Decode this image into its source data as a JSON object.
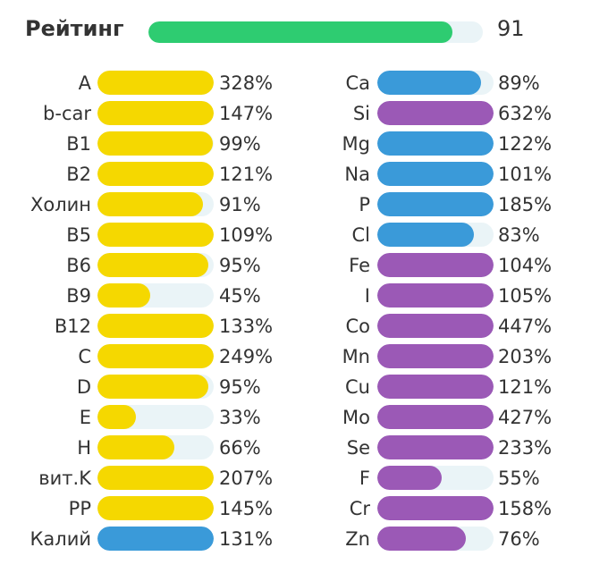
{
  "colors": {
    "vitamin": "#f5d800",
    "mineral_blue": "#3a9ad9",
    "mineral_purple": "#9b59b6",
    "rating": "#2ecc71",
    "track": "#eaf4f7"
  },
  "rating": {
    "label": "Рейтинг",
    "value": "91",
    "fraction": 0.91
  },
  "chart_data": {
    "type": "bar",
    "orientation": "horizontal",
    "max_percent": 100,
    "series": [
      {
        "items": [
          {
            "label": "A",
            "text": "328%",
            "value": 328,
            "color": "vitamin"
          },
          {
            "label": "b-car",
            "text": "147%",
            "value": 147,
            "color": "vitamin"
          },
          {
            "label": "B1",
            "text": "99%",
            "value": 99,
            "color": "vitamin"
          },
          {
            "label": "B2",
            "text": "121%",
            "value": 121,
            "color": "vitamin"
          },
          {
            "label": "Холин",
            "text": "91%",
            "value": 91,
            "color": "vitamin"
          },
          {
            "label": "B5",
            "text": "109%",
            "value": 109,
            "color": "vitamin"
          },
          {
            "label": "B6",
            "text": "95%",
            "value": 95,
            "color": "vitamin"
          },
          {
            "label": "B9",
            "text": "45%",
            "value": 45,
            "color": "vitamin"
          },
          {
            "label": "B12",
            "text": "133%",
            "value": 133,
            "color": "vitamin"
          },
          {
            "label": "C",
            "text": "249%",
            "value": 249,
            "color": "vitamin"
          },
          {
            "label": "D",
            "text": "95%",
            "value": 95,
            "color": "vitamin"
          },
          {
            "label": "E",
            "text": "33%",
            "value": 33,
            "color": "vitamin"
          },
          {
            "label": "H",
            "text": "66%",
            "value": 66,
            "color": "vitamin"
          },
          {
            "label": "вит.K",
            "text": "207%",
            "value": 207,
            "color": "vitamin"
          },
          {
            "label": "PP",
            "text": "145%",
            "value": 145,
            "color": "vitamin"
          },
          {
            "label": "Калий",
            "text": "131%",
            "value": 131,
            "color": "mineral_blue"
          }
        ]
      },
      {
        "items": [
          {
            "label": "Ca",
            "text": "89%",
            "value": 89,
            "color": "mineral_blue"
          },
          {
            "label": "Si",
            "text": "632%",
            "value": 632,
            "color": "mineral_purple"
          },
          {
            "label": "Mg",
            "text": "122%",
            "value": 122,
            "color": "mineral_blue"
          },
          {
            "label": "Na",
            "text": "101%",
            "value": 101,
            "color": "mineral_blue"
          },
          {
            "label": "P",
            "text": "185%",
            "value": 185,
            "color": "mineral_blue"
          },
          {
            "label": "Cl",
            "text": "83%",
            "value": 83,
            "color": "mineral_blue"
          },
          {
            "label": "Fe",
            "text": "104%",
            "value": 104,
            "color": "mineral_purple"
          },
          {
            "label": "I",
            "text": "105%",
            "value": 105,
            "color": "mineral_purple"
          },
          {
            "label": "Co",
            "text": "447%",
            "value": 447,
            "color": "mineral_purple"
          },
          {
            "label": "Mn",
            "text": "203%",
            "value": 203,
            "color": "mineral_purple"
          },
          {
            "label": "Cu",
            "text": "121%",
            "value": 121,
            "color": "mineral_purple"
          },
          {
            "label": "Mo",
            "text": "427%",
            "value": 427,
            "color": "mineral_purple"
          },
          {
            "label": "Se",
            "text": "233%",
            "value": 233,
            "color": "mineral_purple"
          },
          {
            "label": "F",
            "text": "55%",
            "value": 55,
            "color": "mineral_purple"
          },
          {
            "label": "Cr",
            "text": "158%",
            "value": 158,
            "color": "mineral_purple"
          },
          {
            "label": "Zn",
            "text": "76%",
            "value": 76,
            "color": "mineral_purple"
          }
        ]
      }
    ]
  }
}
